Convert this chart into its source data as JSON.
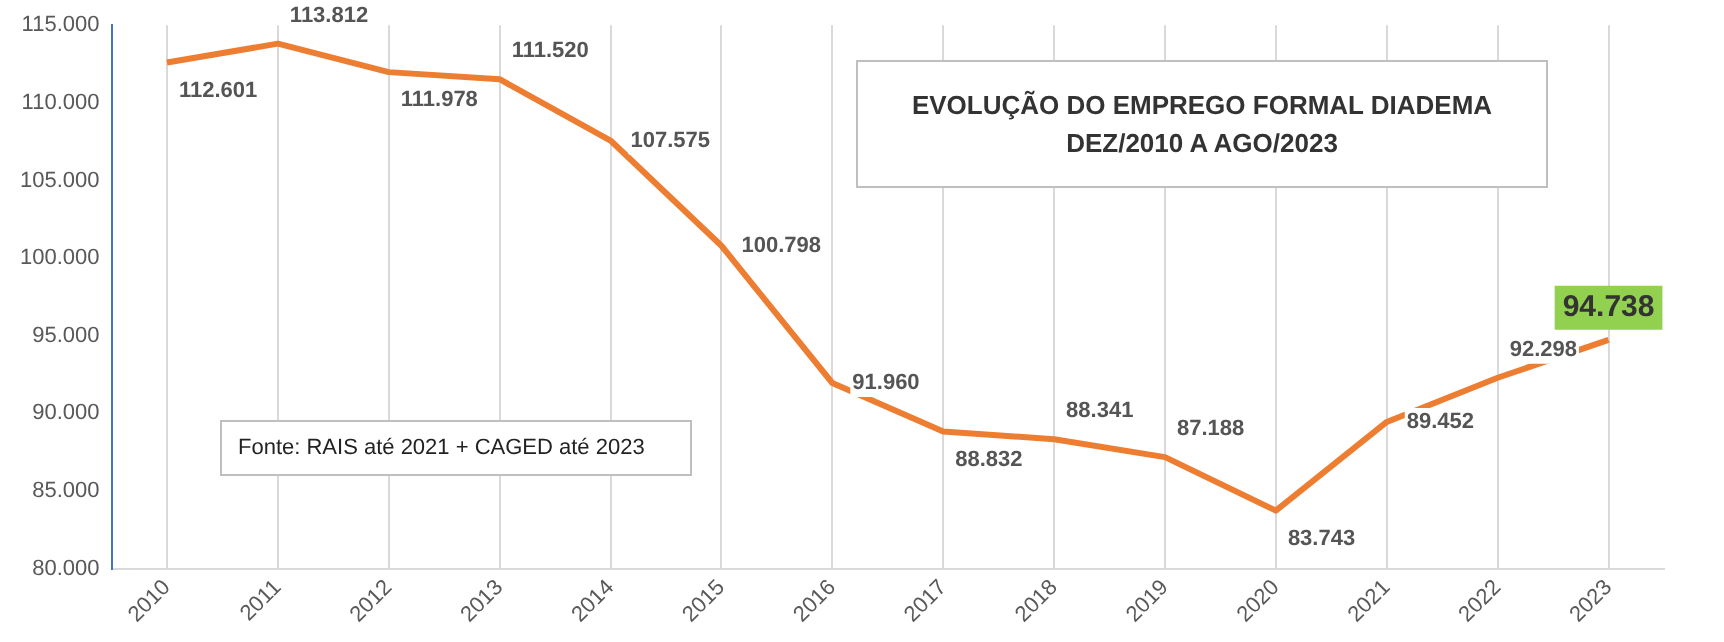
{
  "chart_data": {
    "type": "line",
    "title": "EVOLUÇÃO DO EMPREGO FORMAL  DIADEMA",
    "subtitle": "DEZ/2010 A AGO/2023",
    "annotations": [
      "Fonte: RAIS até 2021 + CAGED até 2023"
    ],
    "categories": [
      "2010",
      "2011",
      "2012",
      "2013",
      "2014",
      "2015",
      "2016",
      "2017",
      "2018",
      "2019",
      "2020",
      "2021",
      "2022",
      "2023"
    ],
    "series": [
      {
        "color": "#ed7d31",
        "values": [
          112601,
          113812,
          111978,
          111520,
          107575,
          100798,
          91960,
          88832,
          88341,
          87188,
          83743,
          89452,
          92298,
          94738
        ],
        "value_labels": [
          "112.601",
          "113.812",
          "111.978",
          "111.520",
          "107.575",
          "100.798",
          "91.960",
          "88.832",
          "88.341",
          "87.188",
          "83.743",
          "89.452",
          "92.298",
          "94.738"
        ]
      }
    ],
    "ylim": [
      80000,
      115000
    ],
    "yticks": [
      {
        "value": 80000,
        "label": "80.000"
      },
      {
        "value": 85000,
        "label": "85.000"
      },
      {
        "value": 90000,
        "label": "90.000"
      },
      {
        "value": 95000,
        "label": "95.000"
      },
      {
        "value": 100000,
        "label": "100.000"
      },
      {
        "value": 105000,
        "label": "105.000"
      },
      {
        "value": 110000,
        "label": "110.000"
      },
      {
        "value": 115000,
        "label": "115.000"
      }
    ],
    "grid": "x",
    "legend": false,
    "marker": "none",
    "line_style": "solid"
  }
}
